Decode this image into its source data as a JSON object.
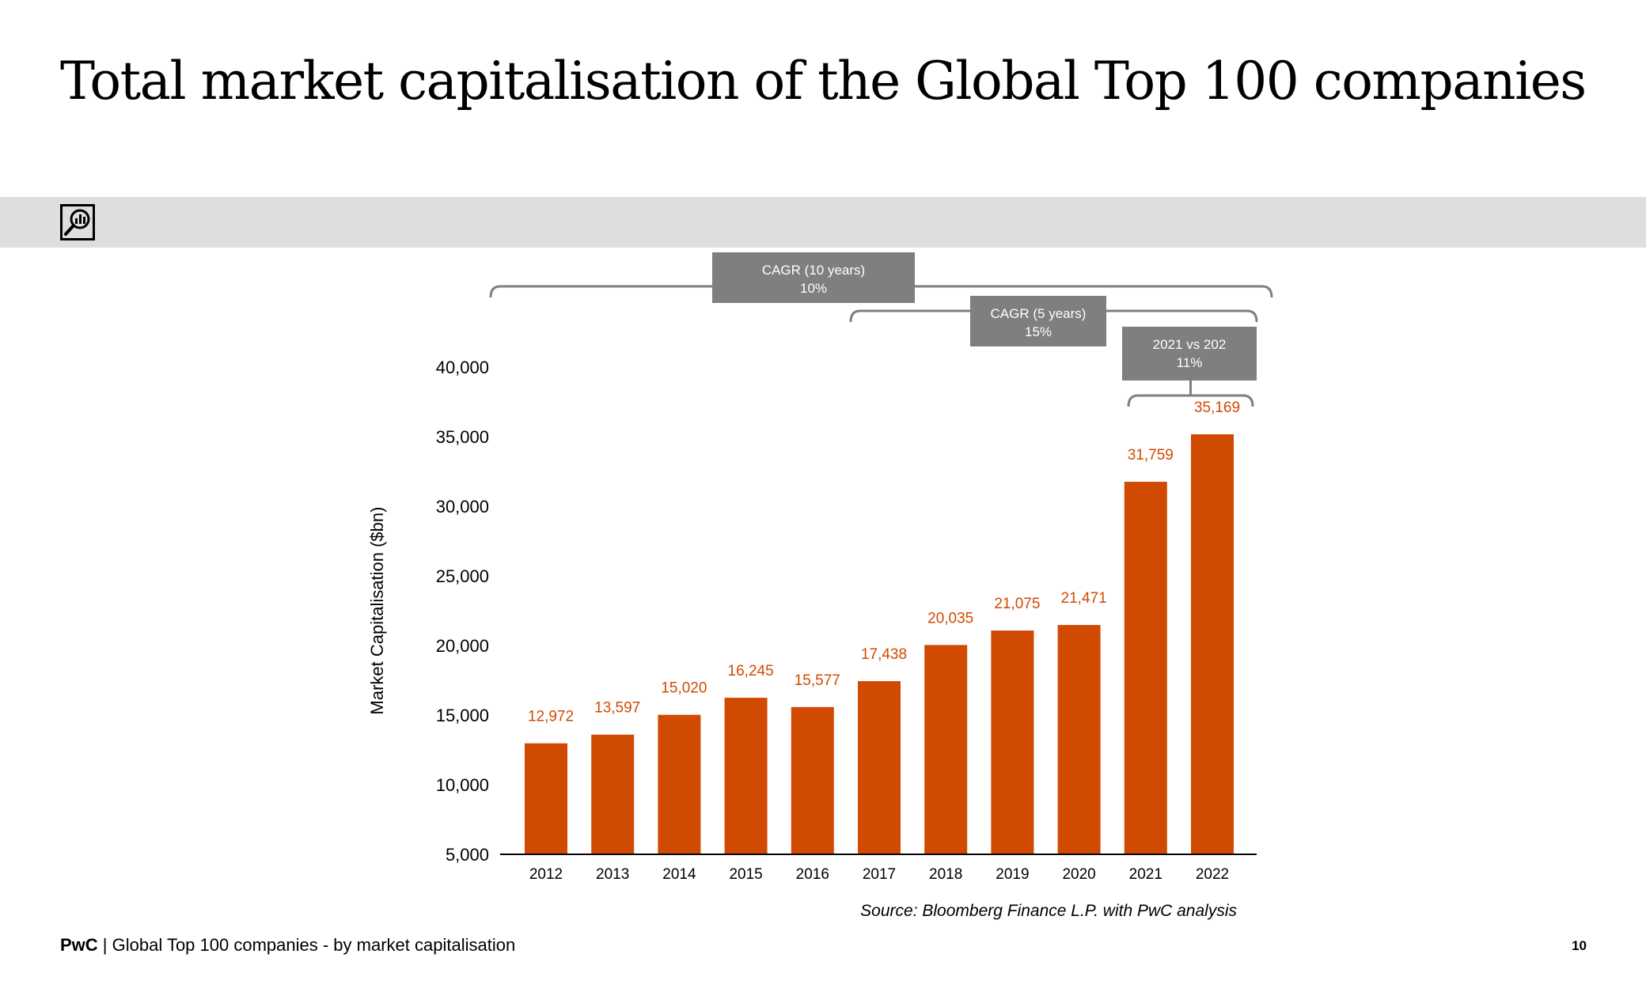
{
  "slide": {
    "title": "Total market capitalisation of the Global Top 100 companies",
    "footer_brand": "PwC",
    "footer_separator": " | ",
    "footer_text": "Global Top 100 companies - by market capitalisation",
    "page_number": "10",
    "band_icon": "magnifier-chart-icon"
  },
  "colors": {
    "bar": "#d04a02",
    "label": "#d04a02",
    "callout": "#7f7f7f",
    "band": "#dedede"
  },
  "chart_data": {
    "type": "bar",
    "title": "Total market capitalisation of the Global Top 100 companies",
    "xlabel": "",
    "ylabel": "Market Capitalisation ($bn)",
    "ylim": [
      5000,
      40000
    ],
    "yticks": [
      5000,
      10000,
      15000,
      20000,
      25000,
      30000,
      35000,
      40000
    ],
    "ytick_labels": [
      "5,000",
      "10,000",
      "15,000",
      "20,000",
      "25,000",
      "30,000",
      "35,000",
      "40,000"
    ],
    "categories": [
      "2012",
      "2013",
      "2014",
      "2015",
      "2016",
      "2017",
      "2018",
      "2019",
      "2020",
      "2021",
      "2022"
    ],
    "values": [
      12972,
      13597,
      15020,
      16245,
      15577,
      17438,
      20035,
      21075,
      21471,
      31759,
      35169
    ],
    "value_labels": [
      "12,972",
      "13,597",
      "15,020",
      "16,245",
      "15,577",
      "17,438",
      "20,035",
      "21,075",
      "21,471",
      "31,759",
      "35,169"
    ],
    "grid": false,
    "source": "Source: Bloomberg Finance L.P. with PwC analysis",
    "annotations": [
      {
        "line1": "CAGR (10 years)",
        "line2": "10%",
        "from": "2012",
        "to": "2022"
      },
      {
        "line1": "CAGR (5 years)",
        "line2": "15%",
        "from": "2017",
        "to": "2022"
      },
      {
        "line1": "2021 vs 202",
        "line2": "11%",
        "from": "2021",
        "to": "2022"
      }
    ]
  }
}
